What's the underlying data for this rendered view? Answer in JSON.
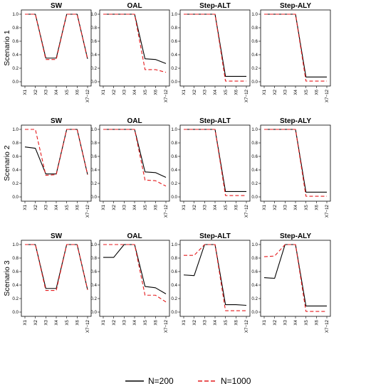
{
  "chart_data": [
    {
      "type": "line",
      "title": "SW",
      "row_label": "Scenario 1",
      "categories": [
        "X1",
        "X2",
        "X3",
        "X4",
        "X5",
        "X6",
        "X7−12"
      ],
      "ylim": [
        0,
        1
      ],
      "yticks": [
        "0.0",
        "0.2",
        "0.4",
        "0.6",
        "0.8",
        "1.0"
      ],
      "series": [
        {
          "name": "N=200",
          "color": "#000000",
          "values": [
            1.0,
            1.0,
            0.35,
            0.35,
            1.0,
            1.0,
            0.34
          ]
        },
        {
          "name": "N=1000",
          "color": "#e41a1c",
          "values": [
            1.0,
            1.0,
            0.33,
            0.33,
            1.0,
            1.0,
            0.33
          ]
        }
      ]
    },
    {
      "type": "line",
      "title": "OAL",
      "row_label": "Scenario 1",
      "categories": [
        "X1",
        "X2",
        "X3",
        "X4",
        "X5",
        "X6",
        "X7−12"
      ],
      "ylim": [
        0,
        1
      ],
      "yticks": [
        "0.0",
        "0.2",
        "0.4",
        "0.6",
        "0.8",
        "1.0"
      ],
      "series": [
        {
          "name": "N=200",
          "color": "#000000",
          "values": [
            1.0,
            1.0,
            1.0,
            1.0,
            0.34,
            0.33,
            0.27
          ]
        },
        {
          "name": "N=1000",
          "color": "#e41a1c",
          "values": [
            1.0,
            1.0,
            1.0,
            1.0,
            0.18,
            0.18,
            0.14
          ]
        }
      ]
    },
    {
      "type": "line",
      "title": "Step-ALT",
      "row_label": "Scenario 1",
      "categories": [
        "X1",
        "X2",
        "X3",
        "X4",
        "X5",
        "X6",
        "X7−12"
      ],
      "ylim": [
        0,
        1
      ],
      "yticks": [
        "0.0",
        "0.2",
        "0.4",
        "0.6",
        "0.8",
        "1.0"
      ],
      "series": [
        {
          "name": "N=200",
          "color": "#000000",
          "values": [
            1.0,
            1.0,
            1.0,
            1.0,
            0.08,
            0.08,
            0.08
          ]
        },
        {
          "name": "N=1000",
          "color": "#e41a1c",
          "values": [
            1.0,
            1.0,
            1.0,
            1.0,
            0.01,
            0.01,
            0.01
          ]
        }
      ]
    },
    {
      "type": "line",
      "title": "Step-ALY",
      "row_label": "Scenario 1",
      "categories": [
        "X1",
        "X2",
        "X3",
        "X4",
        "X5",
        "X6",
        "X7−12"
      ],
      "ylim": [
        0,
        1
      ],
      "yticks": [
        "0.0",
        "0.2",
        "0.4",
        "0.6",
        "0.8",
        "1.0"
      ],
      "series": [
        {
          "name": "N=200",
          "color": "#000000",
          "values": [
            1.0,
            1.0,
            1.0,
            1.0,
            0.07,
            0.07,
            0.07
          ]
        },
        {
          "name": "N=1000",
          "color": "#e41a1c",
          "values": [
            1.0,
            1.0,
            1.0,
            1.0,
            0.01,
            0.01,
            0.01
          ]
        }
      ]
    },
    {
      "type": "line",
      "title": "SW",
      "row_label": "Scenario 2",
      "categories": [
        "X1",
        "X2",
        "X3",
        "X4",
        "X5",
        "X6",
        "X7−12"
      ],
      "ylim": [
        0,
        1
      ],
      "yticks": [
        "0.0",
        "0.2",
        "0.4",
        "0.6",
        "0.8",
        "1.0"
      ],
      "series": [
        {
          "name": "N=200",
          "color": "#000000",
          "values": [
            0.74,
            0.72,
            0.34,
            0.34,
            1.0,
            1.0,
            0.33
          ]
        },
        {
          "name": "N=1000",
          "color": "#e41a1c",
          "values": [
            1.0,
            1.0,
            0.32,
            0.33,
            1.0,
            1.0,
            0.33
          ]
        }
      ]
    },
    {
      "type": "line",
      "title": "OAL",
      "row_label": "Scenario 2",
      "categories": [
        "X1",
        "X2",
        "X3",
        "X4",
        "X5",
        "X6",
        "X7−12"
      ],
      "ylim": [
        0,
        1
      ],
      "yticks": [
        "0.0",
        "0.2",
        "0.4",
        "0.6",
        "0.8",
        "1.0"
      ],
      "series": [
        {
          "name": "N=200",
          "color": "#000000",
          "values": [
            1.0,
            1.0,
            1.0,
            1.0,
            0.37,
            0.36,
            0.29
          ]
        },
        {
          "name": "N=1000",
          "color": "#e41a1c",
          "values": [
            1.0,
            1.0,
            1.0,
            1.0,
            0.25,
            0.24,
            0.16
          ]
        }
      ]
    },
    {
      "type": "line",
      "title": "Step-ALT",
      "row_label": "Scenario 2",
      "categories": [
        "X1",
        "X2",
        "X3",
        "X4",
        "X5",
        "X6",
        "X7−12"
      ],
      "ylim": [
        0,
        1
      ],
      "yticks": [
        "0.0",
        "0.2",
        "0.4",
        "0.6",
        "0.8",
        "1.0"
      ],
      "series": [
        {
          "name": "N=200",
          "color": "#000000",
          "values": [
            1.0,
            1.0,
            1.0,
            1.0,
            0.08,
            0.08,
            0.08
          ]
        },
        {
          "name": "N=1000",
          "color": "#e41a1c",
          "values": [
            1.0,
            1.0,
            1.0,
            1.0,
            0.02,
            0.02,
            0.02
          ]
        }
      ]
    },
    {
      "type": "line",
      "title": "Step-ALY",
      "row_label": "Scenario 2",
      "categories": [
        "X1",
        "X2",
        "X3",
        "X4",
        "X5",
        "X6",
        "X7−12"
      ],
      "ylim": [
        0,
        1
      ],
      "yticks": [
        "0.0",
        "0.2",
        "0.4",
        "0.6",
        "0.8",
        "1.0"
      ],
      "series": [
        {
          "name": "N=200",
          "color": "#000000",
          "values": [
            1.0,
            1.0,
            1.0,
            1.0,
            0.07,
            0.07,
            0.07
          ]
        },
        {
          "name": "N=1000",
          "color": "#e41a1c",
          "values": [
            1.0,
            1.0,
            1.0,
            1.0,
            0.01,
            0.01,
            0.01
          ]
        }
      ]
    },
    {
      "type": "line",
      "title": "SW",
      "row_label": "Scenario 3",
      "categories": [
        "X1",
        "X2",
        "X3",
        "X4",
        "X5",
        "X6",
        "X7−12"
      ],
      "ylim": [
        0,
        1
      ],
      "yticks": [
        "0.0",
        "0.2",
        "0.4",
        "0.6",
        "0.8",
        "1.0"
      ],
      "series": [
        {
          "name": "N=200",
          "color": "#000000",
          "values": [
            1.0,
            1.0,
            0.35,
            0.35,
            1.0,
            1.0,
            0.33
          ]
        },
        {
          "name": "N=1000",
          "color": "#e41a1c",
          "values": [
            1.0,
            1.0,
            0.32,
            0.32,
            1.0,
            1.0,
            0.33
          ]
        }
      ]
    },
    {
      "type": "line",
      "title": "OAL",
      "row_label": "Scenario 3",
      "categories": [
        "X1",
        "X2",
        "X3",
        "X4",
        "X5",
        "X6",
        "X7−12"
      ],
      "ylim": [
        0,
        1
      ],
      "yticks": [
        "0.0",
        "0.2",
        "0.4",
        "0.6",
        "0.8",
        "1.0"
      ],
      "series": [
        {
          "name": "N=200",
          "color": "#000000",
          "values": [
            0.81,
            0.81,
            1.0,
            1.0,
            0.38,
            0.36,
            0.27
          ]
        },
        {
          "name": "N=1000",
          "color": "#e41a1c",
          "values": [
            1.0,
            1.0,
            1.0,
            1.0,
            0.25,
            0.25,
            0.15
          ]
        }
      ]
    },
    {
      "type": "line",
      "title": "Step-ALT",
      "row_label": "Scenario 3",
      "categories": [
        "X1",
        "X2",
        "X3",
        "X4",
        "X5",
        "X6",
        "X7−12"
      ],
      "ylim": [
        0,
        1
      ],
      "yticks": [
        "0.0",
        "0.2",
        "0.4",
        "0.6",
        "0.8",
        "1.0"
      ],
      "series": [
        {
          "name": "N=200",
          "color": "#000000",
          "values": [
            0.55,
            0.54,
            1.0,
            1.0,
            0.11,
            0.11,
            0.1
          ]
        },
        {
          "name": "N=1000",
          "color": "#e41a1c",
          "values": [
            0.84,
            0.84,
            1.0,
            1.0,
            0.02,
            0.02,
            0.02
          ]
        }
      ]
    },
    {
      "type": "line",
      "title": "Step-ALY",
      "row_label": "Scenario 3",
      "categories": [
        "X1",
        "X2",
        "X3",
        "X4",
        "X5",
        "X6",
        "X7−12"
      ],
      "ylim": [
        0,
        1
      ],
      "yticks": [
        "0.0",
        "0.2",
        "0.4",
        "0.6",
        "0.8",
        "1.0"
      ],
      "series": [
        {
          "name": "N=200",
          "color": "#000000",
          "values": [
            0.51,
            0.5,
            1.0,
            1.0,
            0.09,
            0.09,
            0.09
          ]
        },
        {
          "name": "N=1000",
          "color": "#e41a1c",
          "values": [
            0.82,
            0.83,
            1.0,
            1.0,
            0.01,
            0.01,
            0.01
          ]
        }
      ]
    }
  ],
  "legend": {
    "placement": "bottom-center",
    "items": [
      {
        "label": "N=200",
        "color": "#000000",
        "dashed": false
      },
      {
        "label": "N=1000",
        "color": "#e41a1c",
        "dashed": true
      }
    ]
  }
}
